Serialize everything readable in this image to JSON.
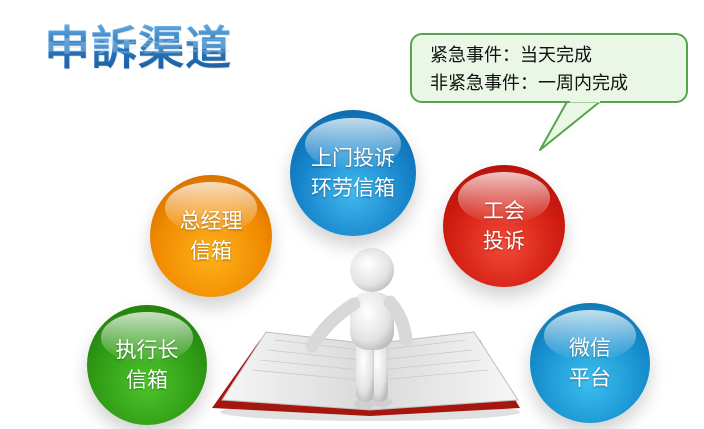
{
  "title": "申訴渠道",
  "note": {
    "line1": "紧急事件：当天完成",
    "line2": "非紧急事件：一周内完成"
  },
  "channels": [
    {
      "line1": "执行长",
      "line2": "信箱",
      "color": "#2f9a15"
    },
    {
      "line1": "总经理",
      "line2": "信箱",
      "color": "#f08a00"
    },
    {
      "line1": "上门投诉",
      "line2": "环劳信箱",
      "color": "#1582c9"
    },
    {
      "line1": "工会",
      "line2": "投诉",
      "color": "#d21d12"
    },
    {
      "line1": "微信",
      "line2": "平台",
      "color": "#1890cf"
    }
  ],
  "colors": {
    "title": "#2b7fca",
    "bubble_border": "#55a64a",
    "bubble_fill": "#eaf7e6"
  }
}
